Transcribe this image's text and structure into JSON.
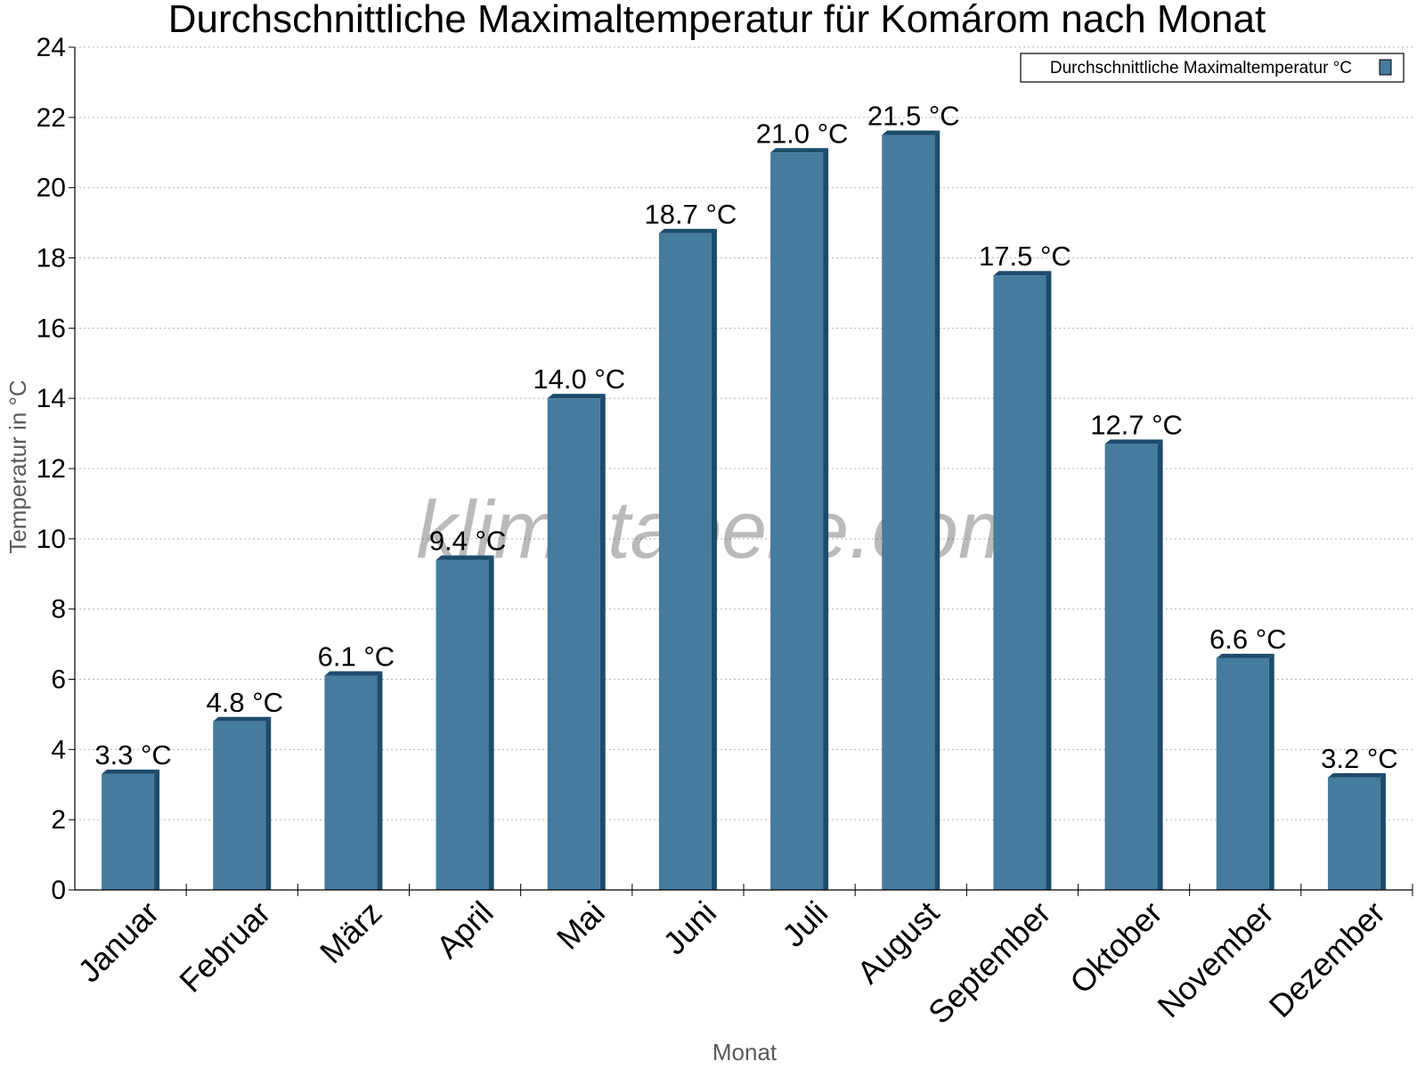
{
  "chart_data": {
    "type": "bar",
    "title": "Durchschnittliche Maximaltemperatur für Komárom nach Monat",
    "xlabel": "Monat",
    "ylabel": "Temperatur in °C",
    "categories": [
      "Januar",
      "Februar",
      "März",
      "April",
      "Mai",
      "Juni",
      "Juli",
      "August",
      "September",
      "Oktober",
      "November",
      "Dezember"
    ],
    "series": [
      {
        "name": "Durchschnittliche Maximaltemperatur °C",
        "values": [
          3.3,
          4.8,
          6.1,
          9.4,
          14.0,
          18.7,
          21.0,
          21.5,
          17.5,
          12.7,
          6.6,
          3.2
        ],
        "labels": [
          "3.3 °C",
          "4.8 °C",
          "6.1 °C",
          "9.4 °C",
          "14.0 °C",
          "18.7 °C",
          "21.0 °C",
          "21.5 °C",
          "17.5 °C",
          "12.7 °C",
          "6.6 °C",
          "3.2 °C"
        ],
        "color": "#457b9d",
        "shade_color": "#1d4b6b"
      }
    ],
    "ylim": [
      0,
      24
    ],
    "yticks": [
      0,
      2,
      4,
      6,
      8,
      10,
      12,
      14,
      16,
      18,
      20,
      22,
      24
    ],
    "grid": true,
    "legend_position": "top-right",
    "watermark": "klimatabelle.com"
  }
}
